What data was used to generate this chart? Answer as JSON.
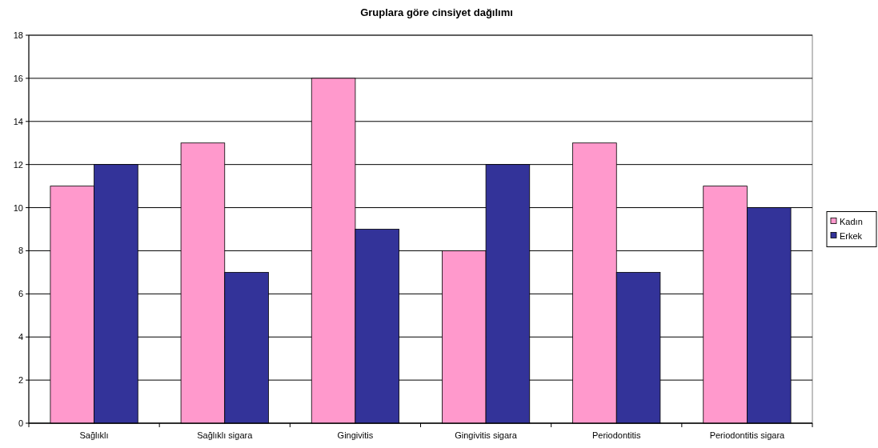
{
  "chart_data": {
    "type": "bar",
    "title": "Gruplara göre cinsiyet dağılımı",
    "categories": [
      "Sağlıklı",
      "Sağlıklı sigara",
      "Gingivitis",
      "Gingivitis sigara",
      "Periodontitis",
      "Periodontitis sigara"
    ],
    "series": [
      {
        "name": "Kadın",
        "color": "#ff99cc",
        "values": [
          11,
          13,
          16,
          8,
          13,
          11
        ]
      },
      {
        "name": "Erkek",
        "color": "#333399",
        "values": [
          12,
          7,
          9,
          12,
          7,
          10
        ]
      }
    ],
    "ylim": [
      0,
      18
    ],
    "yticks": [
      0,
      2,
      4,
      6,
      8,
      10,
      12,
      14,
      16,
      18
    ],
    "grid": "y",
    "legend": "right"
  }
}
